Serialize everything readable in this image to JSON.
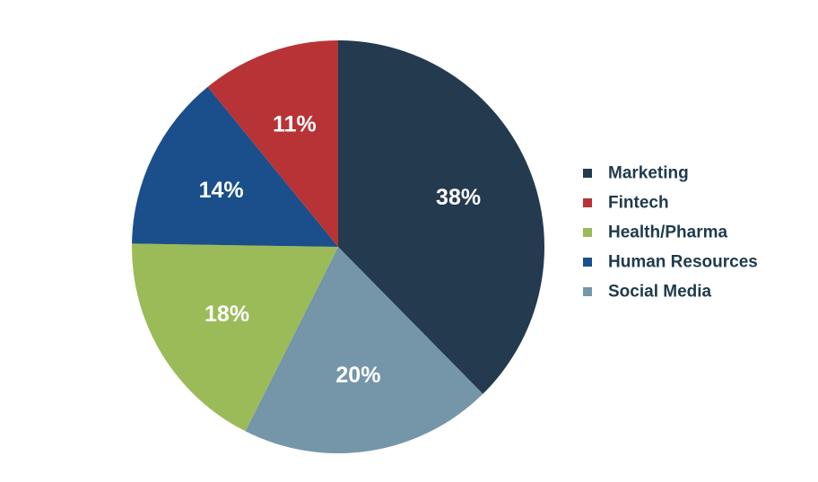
{
  "chart_data": {
    "type": "pie",
    "title": "",
    "slices": [
      {
        "label": "Marketing",
        "value": 38,
        "display": "38%",
        "color": "#243a4f"
      },
      {
        "label": "Social Media",
        "value": 20,
        "display": "20%",
        "color": "#7596a8"
      },
      {
        "label": "Health/Pharma",
        "value": 18,
        "display": "18%",
        "color": "#9bbb59"
      },
      {
        "label": "Human Resources",
        "value": 14,
        "display": "14%",
        "color": "#1a4f8c"
      },
      {
        "label": "Fintech",
        "value": 11,
        "display": "11%",
        "color": "#b73335"
      }
    ],
    "legend": {
      "position": "right",
      "order": [
        "Marketing",
        "Fintech",
        "Health/Pharma",
        "Human Resources",
        "Social Media"
      ]
    },
    "start_angle": "top",
    "direction": "clockwise"
  }
}
